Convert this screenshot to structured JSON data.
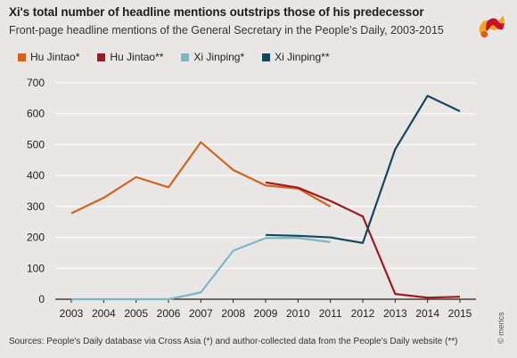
{
  "header": {
    "title": "Xi's total number of headline mentions outstrips those of his predecessor",
    "subtitle": "Front-page headline mentions of the General Secretary in the People's Daily, 2003-2015"
  },
  "footer": {
    "source": "Sources: People's Daily database via Cross Asia (*) and author-collected data from the People's Daily website (**)",
    "credit": "© merics"
  },
  "logo_icon": "merics-logo-icon",
  "chart_data": {
    "type": "line",
    "title": "Xi's total number of headline mentions outstrips those of his predecessor",
    "subtitle": "Front-page headline mentions of the General Secretary in the People's Daily, 2003-2015",
    "xlabel": "",
    "ylabel": "",
    "x": [
      2003,
      2004,
      2005,
      2006,
      2007,
      2008,
      2009,
      2010,
      2011,
      2012,
      2013,
      2014,
      2015
    ],
    "ylim": [
      0,
      700
    ],
    "yticks": [
      0,
      100,
      200,
      300,
      400,
      500,
      600,
      700
    ],
    "grid": true,
    "legend_position": "top-left",
    "series": [
      {
        "name": "Hu Jintao*",
        "color": "#d4621f",
        "points": [
          [
            2003,
            278
          ],
          [
            2004,
            328
          ],
          [
            2005,
            395
          ],
          [
            2006,
            362
          ],
          [
            2007,
            508
          ],
          [
            2008,
            418
          ],
          [
            2009,
            368
          ],
          [
            2010,
            358
          ],
          [
            2011,
            300
          ]
        ]
      },
      {
        "name": "Hu Jintao**",
        "color": "#9e1b22",
        "points": [
          [
            2009,
            378
          ],
          [
            2010,
            361
          ],
          [
            2011,
            318
          ],
          [
            2012,
            268
          ],
          [
            2013,
            17
          ],
          [
            2014,
            5
          ],
          [
            2015,
            8
          ]
        ]
      },
      {
        "name": "Xi Jinping*",
        "color": "#7fb6c3",
        "points": [
          [
            2003,
            0
          ],
          [
            2004,
            0
          ],
          [
            2005,
            0
          ],
          [
            2006,
            0
          ],
          [
            2007,
            22
          ],
          [
            2008,
            157
          ],
          [
            2009,
            198
          ],
          [
            2010,
            198
          ],
          [
            2011,
            185
          ]
        ]
      },
      {
        "name": "Xi Jinping**",
        "color": "#14465c",
        "points": [
          [
            2009,
            208
          ],
          [
            2010,
            205
          ],
          [
            2011,
            200
          ],
          [
            2012,
            182
          ],
          [
            2013,
            485
          ],
          [
            2014,
            658
          ],
          [
            2015,
            608
          ]
        ]
      }
    ]
  }
}
